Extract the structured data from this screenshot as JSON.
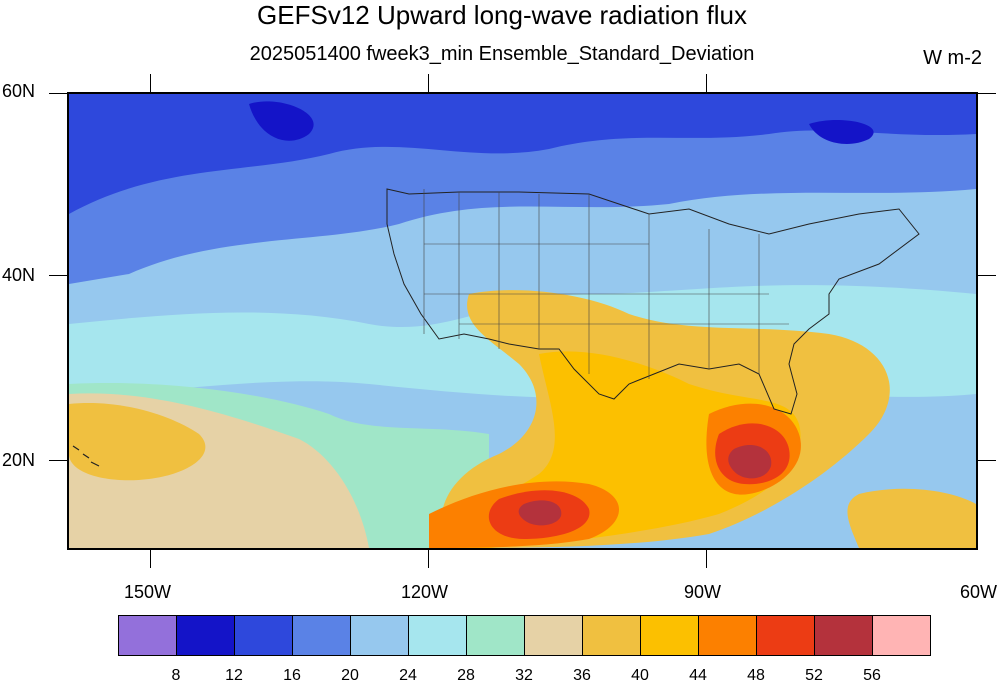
{
  "title": "GEFSv12 Upward long-wave radiation flux",
  "subtitle": "2025051400 fweek3_min Ensemble_Standard_Deviation",
  "units": "W m-2",
  "lat_labels": [
    "60N",
    "40N",
    "20N"
  ],
  "lon_labels": [
    "150W",
    "120W",
    "90W",
    "60W"
  ],
  "colorbar": {
    "levels": [
      "8",
      "12",
      "16",
      "20",
      "24",
      "28",
      "32",
      "36",
      "40",
      "44",
      "48",
      "52",
      "56"
    ],
    "colors": [
      "#9370db",
      "#1414c8",
      "#2e48dc",
      "#5a82e6",
      "#96c8ee",
      "#a6e6ee",
      "#a0e6c8",
      "#e6d2a6",
      "#f0c040",
      "#fcc000",
      "#fc8000",
      "#ec3c14",
      "#b4323c",
      "#ffb4b4"
    ]
  }
}
